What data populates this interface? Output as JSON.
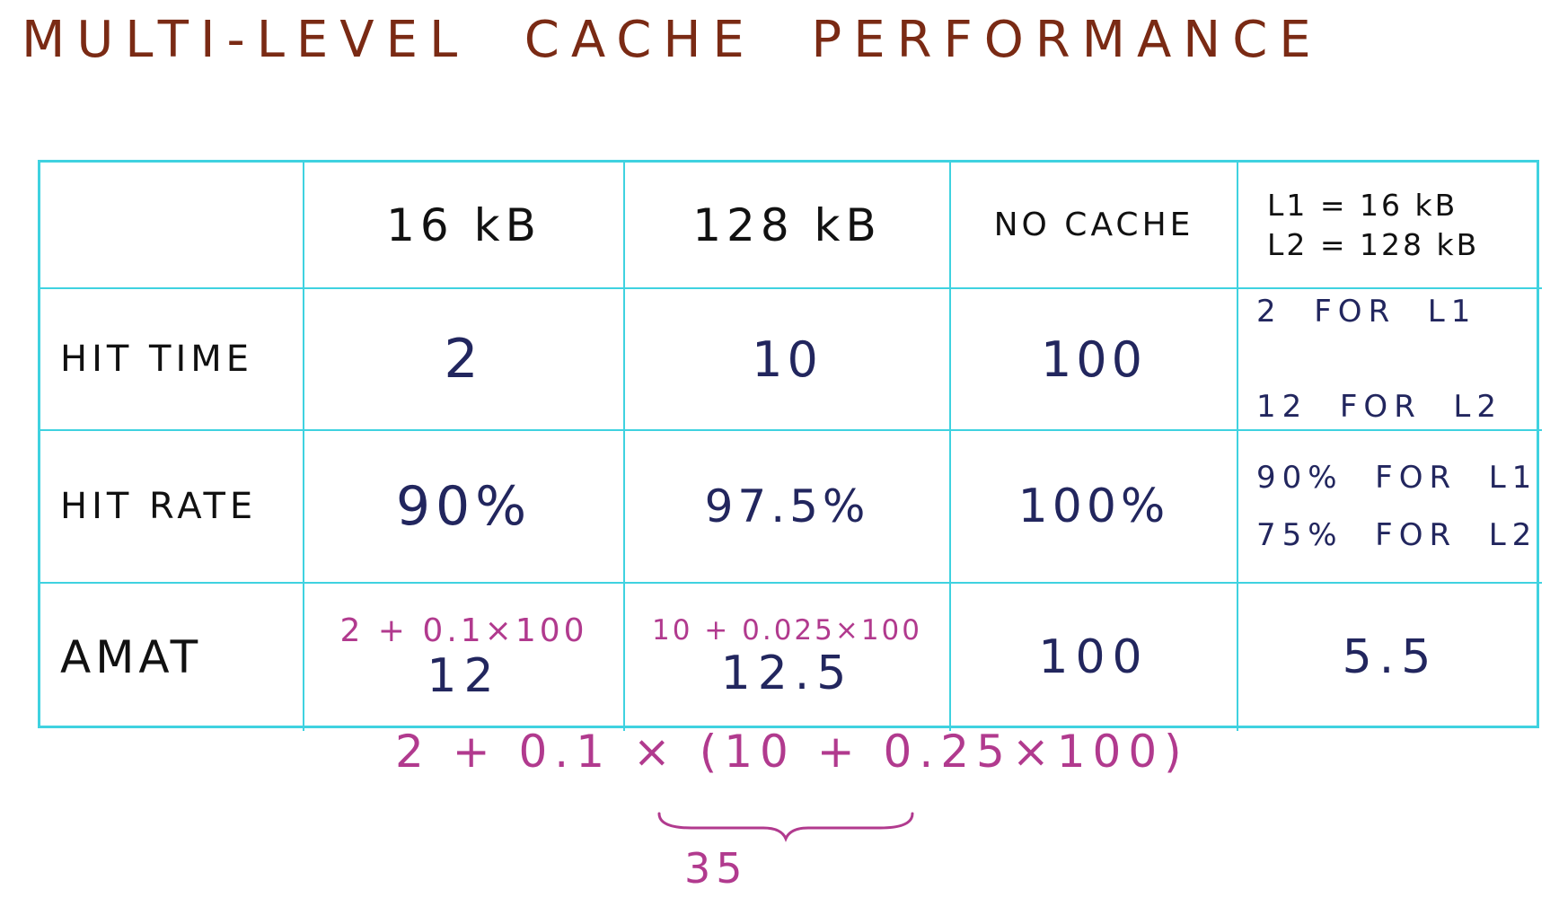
{
  "title": "MULTI-LEVEL  CACHE  PERFORMANCE",
  "table": {
    "headers": [
      "16 kB",
      "128 kB",
      "NO CACHE"
    ],
    "combo_header": [
      "L1 = 16 kB",
      "L2 = 128 kB"
    ],
    "rows": {
      "hit_time": {
        "label": "HIT TIME",
        "values": [
          "2",
          "10",
          "100"
        ],
        "combo": [
          "2  FOR  L1",
          "12  FOR  L2"
        ]
      },
      "hit_rate": {
        "label": "HIT RATE",
        "values": [
          "90%",
          "97.5%",
          "100%"
        ],
        "combo": [
          "90%  FOR  L1",
          "75%  FOR  L2"
        ]
      },
      "amat": {
        "label": "AMAT",
        "formulas": [
          "2 + 0.1×100",
          "10 + 0.025×100",
          ""
        ],
        "values": [
          "12",
          "12.5",
          "100"
        ],
        "combo": "5.5"
      }
    }
  },
  "annotation": {
    "formula": "2 + 0.1 × (10 + 0.25×100)",
    "brace_result": "35"
  },
  "colors": {
    "title": "#7a2a14",
    "grid": "#3fd2e0",
    "ink_black": "#111111",
    "ink_blue": "#22265e",
    "ink_pink": "#b13a8e"
  }
}
